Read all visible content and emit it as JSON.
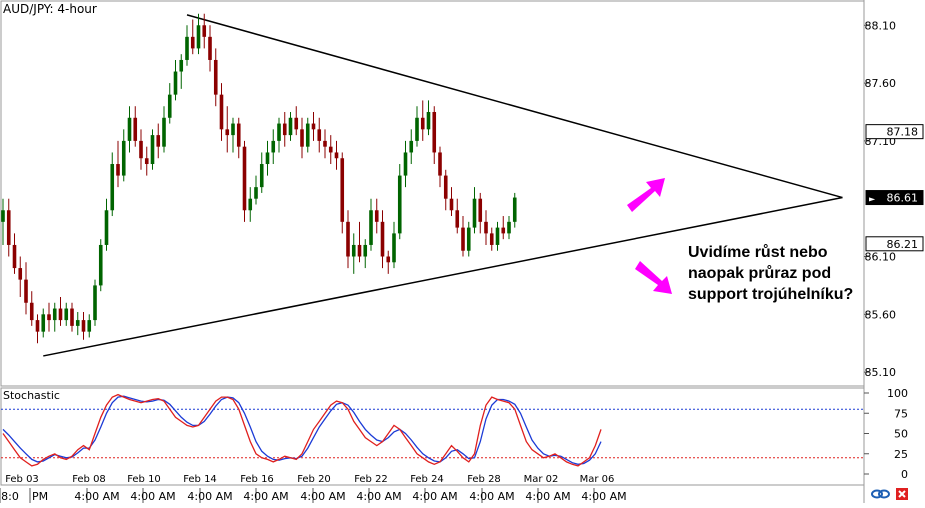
{
  "chart_data": {
    "type": "candlestick",
    "title": "AUD/JPY: 4-hour",
    "colors": {
      "up": "#006400",
      "down": "#8b0000",
      "stoch_k": "#e0201e",
      "stoch_d": "#1c3bd6",
      "arrow": "#ff00ff",
      "grid": "#dddddd",
      "price_tag_bg": "#000000"
    },
    "price_axis": {
      "ylim": [
        84.98,
        88.31
      ],
      "ticks": [
        "88.10",
        "87.60",
        "87.10",
        "86.10",
        "85.60",
        "85.10"
      ]
    },
    "price_tags": [
      {
        "label": "87.18",
        "value": 87.18,
        "style": "outline"
      },
      {
        "label": "86.61",
        "value": 86.61,
        "style": "dark",
        "marker": "►"
      },
      {
        "label": "86.21",
        "value": 86.21,
        "style": "outline"
      }
    ],
    "candles": [
      {
        "o": 86.4,
        "h": 86.6,
        "l": 86.2,
        "c": 86.5
      },
      {
        "o": 86.5,
        "h": 86.6,
        "l": 86.1,
        "c": 86.2
      },
      {
        "o": 86.2,
        "h": 86.3,
        "l": 85.95,
        "c": 86.0
      },
      {
        "o": 86.0,
        "h": 86.1,
        "l": 85.75,
        "c": 85.9
      },
      {
        "o": 85.9,
        "h": 86.05,
        "l": 85.6,
        "c": 85.7
      },
      {
        "o": 85.7,
        "h": 85.8,
        "l": 85.5,
        "c": 85.55
      },
      {
        "o": 85.55,
        "h": 85.6,
        "l": 85.35,
        "c": 85.45
      },
      {
        "o": 85.45,
        "h": 85.65,
        "l": 85.4,
        "c": 85.6
      },
      {
        "o": 85.6,
        "h": 85.7,
        "l": 85.45,
        "c": 85.55
      },
      {
        "o": 85.55,
        "h": 85.7,
        "l": 85.45,
        "c": 85.65
      },
      {
        "o": 85.65,
        "h": 85.75,
        "l": 85.5,
        "c": 85.55
      },
      {
        "o": 85.55,
        "h": 85.7,
        "l": 85.5,
        "c": 85.65
      },
      {
        "o": 85.65,
        "h": 85.7,
        "l": 85.45,
        "c": 85.5
      },
      {
        "o": 85.5,
        "h": 85.62,
        "l": 85.42,
        "c": 85.55
      },
      {
        "o": 85.55,
        "h": 85.62,
        "l": 85.38,
        "c": 85.45
      },
      {
        "o": 85.45,
        "h": 85.6,
        "l": 85.4,
        "c": 85.55
      },
      {
        "o": 85.55,
        "h": 85.9,
        "l": 85.5,
        "c": 85.85
      },
      {
        "o": 85.85,
        "h": 86.25,
        "l": 85.8,
        "c": 86.2
      },
      {
        "o": 86.2,
        "h": 86.6,
        "l": 86.15,
        "c": 86.5
      },
      {
        "o": 86.5,
        "h": 87.0,
        "l": 86.45,
        "c": 86.9
      },
      {
        "o": 86.9,
        "h": 87.1,
        "l": 86.7,
        "c": 86.8
      },
      {
        "o": 86.8,
        "h": 87.2,
        "l": 86.75,
        "c": 87.1
      },
      {
        "o": 87.1,
        "h": 87.4,
        "l": 87.0,
        "c": 87.3
      },
      {
        "o": 87.3,
        "h": 87.4,
        "l": 87.05,
        "c": 87.1
      },
      {
        "o": 87.1,
        "h": 87.2,
        "l": 86.85,
        "c": 86.95
      },
      {
        "o": 86.95,
        "h": 87.05,
        "l": 86.8,
        "c": 86.9
      },
      {
        "o": 86.9,
        "h": 87.2,
        "l": 86.85,
        "c": 87.15
      },
      {
        "o": 87.15,
        "h": 87.25,
        "l": 86.95,
        "c": 87.05
      },
      {
        "o": 87.05,
        "h": 87.4,
        "l": 87.0,
        "c": 87.3
      },
      {
        "o": 87.3,
        "h": 87.6,
        "l": 87.25,
        "c": 87.5
      },
      {
        "o": 87.5,
        "h": 87.8,
        "l": 87.45,
        "c": 87.7
      },
      {
        "o": 87.7,
        "h": 87.85,
        "l": 87.55,
        "c": 87.8
      },
      {
        "o": 87.8,
        "h": 88.1,
        "l": 87.75,
        "c": 88.0
      },
      {
        "o": 88.0,
        "h": 88.15,
        "l": 87.85,
        "c": 87.9
      },
      {
        "o": 87.9,
        "h": 88.2,
        "l": 87.85,
        "c": 88.1
      },
      {
        "o": 88.1,
        "h": 88.2,
        "l": 87.9,
        "c": 88.0
      },
      {
        "o": 88.0,
        "h": 88.1,
        "l": 87.7,
        "c": 87.8
      },
      {
        "o": 87.8,
        "h": 87.9,
        "l": 87.4,
        "c": 87.5
      },
      {
        "o": 87.5,
        "h": 87.6,
        "l": 87.1,
        "c": 87.2
      },
      {
        "o": 87.2,
        "h": 87.4,
        "l": 87.0,
        "c": 87.15
      },
      {
        "o": 87.15,
        "h": 87.3,
        "l": 87.0,
        "c": 87.25
      },
      {
        "o": 87.25,
        "h": 87.3,
        "l": 86.95,
        "c": 87.05
      },
      {
        "o": 87.05,
        "h": 87.1,
        "l": 86.4,
        "c": 86.5
      },
      {
        "o": 86.5,
        "h": 86.7,
        "l": 86.4,
        "c": 86.6
      },
      {
        "o": 86.6,
        "h": 86.8,
        "l": 86.55,
        "c": 86.7
      },
      {
        "o": 86.7,
        "h": 87.0,
        "l": 86.65,
        "c": 86.9
      },
      {
        "o": 86.9,
        "h": 87.1,
        "l": 86.8,
        "c": 87.0
      },
      {
        "o": 87.0,
        "h": 87.2,
        "l": 86.9,
        "c": 87.1
      },
      {
        "o": 87.1,
        "h": 87.3,
        "l": 87.0,
        "c": 87.25
      },
      {
        "o": 87.25,
        "h": 87.35,
        "l": 87.05,
        "c": 87.15
      },
      {
        "o": 87.15,
        "h": 87.35,
        "l": 87.1,
        "c": 87.3
      },
      {
        "o": 87.3,
        "h": 87.4,
        "l": 87.15,
        "c": 87.2
      },
      {
        "o": 87.2,
        "h": 87.3,
        "l": 86.95,
        "c": 87.05
      },
      {
        "o": 87.05,
        "h": 87.3,
        "l": 87.0,
        "c": 87.25
      },
      {
        "o": 87.25,
        "h": 87.35,
        "l": 87.1,
        "c": 87.2
      },
      {
        "o": 87.2,
        "h": 87.3,
        "l": 87.0,
        "c": 87.1
      },
      {
        "o": 87.1,
        "h": 87.2,
        "l": 86.95,
        "c": 87.05
      },
      {
        "o": 87.05,
        "h": 87.15,
        "l": 86.9,
        "c": 87.0
      },
      {
        "o": 87.0,
        "h": 87.1,
        "l": 86.85,
        "c": 86.95
      },
      {
        "o": 86.95,
        "h": 87.0,
        "l": 86.3,
        "c": 86.4
      },
      {
        "o": 86.4,
        "h": 86.5,
        "l": 86.0,
        "c": 86.1
      },
      {
        "o": 86.1,
        "h": 86.3,
        "l": 85.95,
        "c": 86.2
      },
      {
        "o": 86.2,
        "h": 86.4,
        "l": 86.05,
        "c": 86.1
      },
      {
        "o": 86.1,
        "h": 86.25,
        "l": 86.0,
        "c": 86.2
      },
      {
        "o": 86.2,
        "h": 86.6,
        "l": 86.15,
        "c": 86.5
      },
      {
        "o": 86.5,
        "h": 86.6,
        "l": 86.3,
        "c": 86.4
      },
      {
        "o": 86.4,
        "h": 86.5,
        "l": 86.0,
        "c": 86.1
      },
      {
        "o": 86.1,
        "h": 86.15,
        "l": 85.95,
        "c": 86.05
      },
      {
        "o": 86.05,
        "h": 86.4,
        "l": 86.0,
        "c": 86.3
      },
      {
        "o": 86.3,
        "h": 86.9,
        "l": 86.25,
        "c": 86.8
      },
      {
        "o": 86.8,
        "h": 87.1,
        "l": 86.7,
        "c": 87.0
      },
      {
        "o": 87.0,
        "h": 87.2,
        "l": 86.9,
        "c": 87.1
      },
      {
        "o": 87.1,
        "h": 87.4,
        "l": 87.05,
        "c": 87.3
      },
      {
        "o": 87.3,
        "h": 87.45,
        "l": 87.1,
        "c": 87.2
      },
      {
        "o": 87.2,
        "h": 87.45,
        "l": 87.15,
        "c": 87.35
      },
      {
        "o": 87.35,
        "h": 87.4,
        "l": 86.9,
        "c": 87.0
      },
      {
        "o": 87.0,
        "h": 87.05,
        "l": 86.7,
        "c": 86.8
      },
      {
        "o": 86.8,
        "h": 86.85,
        "l": 86.5,
        "c": 86.6
      },
      {
        "o": 86.6,
        "h": 86.7,
        "l": 86.45,
        "c": 86.5
      },
      {
        "o": 86.5,
        "h": 86.6,
        "l": 86.3,
        "c": 86.35
      },
      {
        "o": 86.35,
        "h": 86.45,
        "l": 86.1,
        "c": 86.15
      },
      {
        "o": 86.15,
        "h": 86.4,
        "l": 86.1,
        "c": 86.35
      },
      {
        "o": 86.35,
        "h": 86.7,
        "l": 86.3,
        "c": 86.6
      },
      {
        "o": 86.6,
        "h": 86.65,
        "l": 86.3,
        "c": 86.4
      },
      {
        "o": 86.4,
        "h": 86.5,
        "l": 86.2,
        "c": 86.3
      },
      {
        "o": 86.3,
        "h": 86.35,
        "l": 86.15,
        "c": 86.2
      },
      {
        "o": 86.2,
        "h": 86.4,
        "l": 86.15,
        "c": 86.35
      },
      {
        "o": 86.35,
        "h": 86.45,
        "l": 86.25,
        "c": 86.3
      },
      {
        "o": 86.3,
        "h": 86.45,
        "l": 86.25,
        "c": 86.4
      },
      {
        "o": 86.4,
        "h": 86.65,
        "l": 86.35,
        "c": 86.61
      }
    ],
    "trendlines": [
      {
        "name": "resistance",
        "from": {
          "i": 32,
          "v": 88.19
        },
        "to": {
          "i": 146,
          "v": 86.61
        }
      },
      {
        "name": "support",
        "from": {
          "i": 7,
          "v": 85.24
        },
        "to": {
          "i": 146,
          "v": 86.61
        }
      }
    ],
    "stochastic": {
      "label": "Stochastic",
      "ylim": [
        0,
        100
      ],
      "ticks": [
        "100",
        "75",
        "50",
        "25",
        "0"
      ],
      "levels": [
        80,
        20
      ],
      "k": [
        50,
        40,
        30,
        20,
        15,
        10,
        12,
        18,
        22,
        25,
        20,
        18,
        22,
        30,
        35,
        30,
        50,
        70,
        85,
        95,
        98,
        95,
        92,
        90,
        88,
        90,
        92,
        93,
        90,
        80,
        70,
        65,
        60,
        58,
        60,
        70,
        80,
        90,
        95,
        95,
        92,
        80,
        60,
        40,
        25,
        20,
        18,
        15,
        18,
        22,
        20,
        18,
        25,
        40,
        55,
        65,
        75,
        85,
        90,
        88,
        80,
        65,
        55,
        45,
        40,
        35,
        40,
        50,
        60,
        55,
        45,
        35,
        25,
        20,
        15,
        12,
        15,
        25,
        35,
        28,
        20,
        15,
        25,
        60,
        85,
        95,
        92,
        90,
        88,
        80,
        60,
        40,
        30,
        25,
        20,
        22,
        25,
        20,
        15,
        12,
        10,
        15,
        20,
        35,
        55
      ],
      "d": [
        55,
        48,
        40,
        32,
        25,
        18,
        15,
        16,
        20,
        24,
        22,
        20,
        21,
        26,
        32,
        32,
        42,
        58,
        75,
        88,
        95,
        96,
        94,
        92,
        90,
        89,
        90,
        92,
        91,
        86,
        78,
        70,
        64,
        60,
        60,
        65,
        74,
        84,
        92,
        95,
        94,
        88,
        75,
        58,
        40,
        28,
        22,
        18,
        17,
        19,
        20,
        19,
        22,
        32,
        45,
        58,
        68,
        78,
        86,
        88,
        85,
        76,
        65,
        55,
        48,
        42,
        40,
        45,
        52,
        55,
        50,
        42,
        33,
        25,
        20,
        16,
        15,
        20,
        28,
        30,
        25,
        19,
        20,
        40,
        68,
        85,
        92,
        92,
        90,
        86,
        75,
        58,
        42,
        32,
        25,
        22,
        23,
        22,
        18,
        14,
        12,
        13,
        17,
        25,
        40
      ]
    },
    "x_axis": {
      "date_labels": [
        "Feb 03",
        "Feb 08",
        "Feb 10",
        "Feb 14",
        "Feb 16",
        "Feb 20",
        "Feb 22",
        "Feb 24",
        "Feb 28",
        "Mar 02",
        "Mar 06"
      ],
      "time_labels": [
        "8:0",
        "PM",
        "4:00 AM",
        "4:00 AM",
        "4:00 AM",
        "4:00 AM",
        "4:00 AM",
        "4:00 AM",
        "4:00 AM",
        "4:00 AM",
        "4:00 AM",
        "4:00 AM"
      ]
    }
  },
  "annotation": {
    "lines": [
      "Uvidíme růst nebo",
      "naopak průraz pod",
      "support trojúhelníku?"
    ]
  }
}
